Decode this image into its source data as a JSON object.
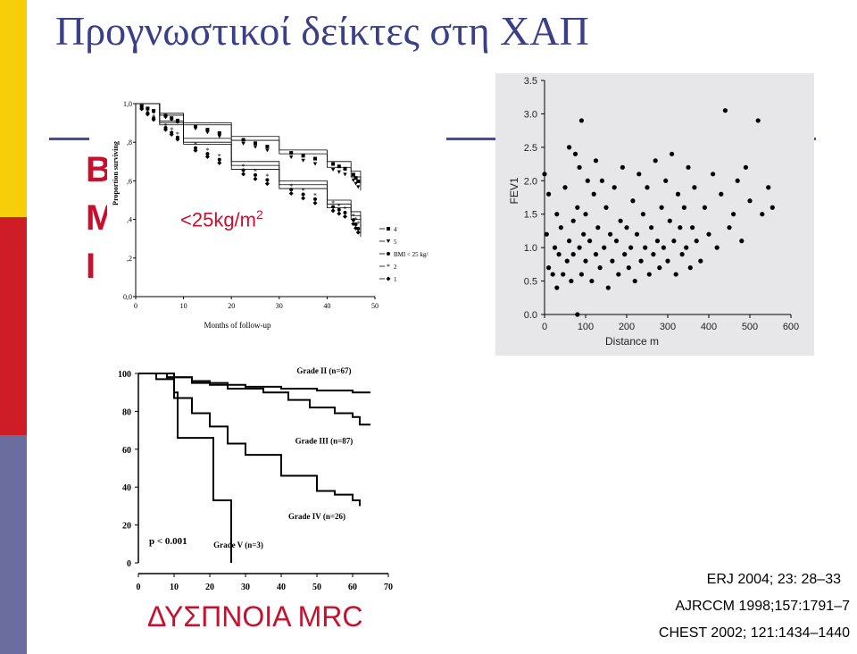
{
  "slide": {
    "title": "Προγνωστικοί δείκτες στη ΧΑΠ",
    "bmi_letters": [
      "B",
      "M",
      "I"
    ],
    "bmi_threshold": "<25kg/m",
    "bmi_threshold_sup": "2",
    "dyspnea_label": "ΔΥΣΠΝΟΙΑ MRC",
    "refs": [
      "ERJ 2004; 23: 28–33",
      "AJRCCM 1998;157:1791–7",
      "CHEST 2002; 121:1434–1440"
    ],
    "colors": {
      "title": "#3b3f88",
      "accent_red": "#c8102e",
      "bar_yellow": "#f6cf0a",
      "bar_red": "#cf1d27",
      "bar_navy": "#6b6d9e"
    }
  },
  "chart_data": [
    {
      "type": "line",
      "id": "bmi-survival",
      "ylabel": "Proportion surviving",
      "xlabel": "Months of follow-up",
      "xlim": [
        0,
        50
      ],
      "ylim": [
        0.0,
        1.0
      ],
      "x_ticks": [
        0,
        10,
        20,
        30,
        40,
        50
      ],
      "x_tick_labels": [
        "0",
        "10",
        "20",
        "30",
        "40",
        "50"
      ],
      "y_ticks": [
        0.0,
        0.2,
        0.4,
        0.6,
        0.8,
        1.0
      ],
      "y_tick_labels": [
        "0,0",
        ",2",
        ",4",
        ",6",
        ",8",
        "1,0"
      ],
      "legend": [
        "4",
        "5",
        "BMI < 25 kg/m2",
        "2",
        "1"
      ],
      "series": [
        {
          "name": "4",
          "x": [
            0,
            5,
            10,
            20,
            30,
            40,
            45,
            47
          ],
          "values": [
            1.0,
            0.95,
            0.9,
            0.83,
            0.76,
            0.7,
            0.65,
            0.58
          ]
        },
        {
          "name": "5",
          "x": [
            0,
            5,
            10,
            20,
            30,
            40,
            45,
            47
          ],
          "values": [
            1.0,
            0.94,
            0.89,
            0.81,
            0.74,
            0.67,
            0.62,
            0.55
          ]
        },
        {
          "name": "BMI < 25 kg/m2",
          "x": [
            0,
            5,
            10,
            20,
            30,
            40,
            45,
            47
          ],
          "values": [
            1.0,
            0.9,
            0.8,
            0.68,
            0.58,
            0.48,
            0.42,
            0.33
          ]
        },
        {
          "name": "2",
          "x": [
            0,
            5,
            10,
            20,
            30,
            40,
            45,
            47
          ],
          "values": [
            1.0,
            0.91,
            0.82,
            0.7,
            0.6,
            0.5,
            0.44,
            0.36
          ]
        },
        {
          "name": "1",
          "x": [
            0,
            5,
            10,
            20,
            30,
            40,
            45,
            47
          ],
          "values": [
            1.0,
            0.89,
            0.79,
            0.66,
            0.56,
            0.46,
            0.4,
            0.31
          ]
        }
      ]
    },
    {
      "type": "scatter",
      "id": "fev1-distance",
      "xlabel": "Distance m",
      "ylabel": "FEV1",
      "xlim": [
        0,
        600
      ],
      "ylim": [
        0,
        3.5
      ],
      "x_ticks": [
        0,
        100,
        200,
        300,
        400,
        500,
        600
      ],
      "x_tick_labels": [
        "0",
        "100",
        "200",
        "300",
        "400",
        "500",
        "600"
      ],
      "y_ticks": [
        0,
        0.5,
        1.0,
        1.5,
        2.0,
        2.5,
        3.0,
        3.5
      ],
      "y_tick_labels": [
        "0.0",
        "0.5",
        "1.0",
        "1.5",
        "2.0",
        "2.5",
        "3.0",
        "3.5"
      ],
      "points": [
        [
          0,
          2.1
        ],
        [
          5,
          1.2
        ],
        [
          10,
          1.8
        ],
        [
          10,
          0.7
        ],
        [
          20,
          0.6
        ],
        [
          25,
          1.0
        ],
        [
          30,
          1.5
        ],
        [
          30,
          0.4
        ],
        [
          35,
          0.9
        ],
        [
          40,
          1.3
        ],
        [
          45,
          0.6
        ],
        [
          50,
          1.9
        ],
        [
          55,
          0.8
        ],
        [
          60,
          2.5
        ],
        [
          60,
          1.1
        ],
        [
          65,
          0.5
        ],
        [
          70,
          1.4
        ],
        [
          70,
          0.9
        ],
        [
          75,
          2.4
        ],
        [
          80,
          0.0
        ],
        [
          80,
          1.6
        ],
        [
          85,
          2.2
        ],
        [
          85,
          1.0
        ],
        [
          90,
          2.9
        ],
        [
          90,
          0.6
        ],
        [
          95,
          1.2
        ],
        [
          100,
          0.8
        ],
        [
          100,
          1.5
        ],
        [
          105,
          2.0
        ],
        [
          110,
          1.1
        ],
        [
          115,
          0.5
        ],
        [
          120,
          1.8
        ],
        [
          125,
          2.3
        ],
        [
          125,
          0.9
        ],
        [
          130,
          1.3
        ],
        [
          135,
          0.7
        ],
        [
          140,
          2.0
        ],
        [
          145,
          1.0
        ],
        [
          150,
          1.6
        ],
        [
          155,
          0.4
        ],
        [
          160,
          1.2
        ],
        [
          165,
          0.8
        ],
        [
          170,
          1.9
        ],
        [
          175,
          1.1
        ],
        [
          180,
          0.6
        ],
        [
          185,
          1.4
        ],
        [
          190,
          2.2
        ],
        [
          195,
          0.9
        ],
        [
          200,
          1.3
        ],
        [
          205,
          0.7
        ],
        [
          210,
          1.0
        ],
        [
          215,
          1.7
        ],
        [
          220,
          0.5
        ],
        [
          225,
          1.2
        ],
        [
          230,
          2.1
        ],
        [
          235,
          0.8
        ],
        [
          240,
          1.5
        ],
        [
          245,
          1.0
        ],
        [
          250,
          1.9
        ],
        [
          255,
          0.6
        ],
        [
          260,
          1.3
        ],
        [
          265,
          0.9
        ],
        [
          270,
          2.3
        ],
        [
          275,
          1.1
        ],
        [
          280,
          0.7
        ],
        [
          285,
          1.6
        ],
        [
          290,
          1.0
        ],
        [
          295,
          2.0
        ],
        [
          300,
          0.8
        ],
        [
          305,
          1.4
        ],
        [
          310,
          2.4
        ],
        [
          315,
          1.1
        ],
        [
          320,
          0.6
        ],
        [
          325,
          1.8
        ],
        [
          330,
          1.3
        ],
        [
          335,
          0.9
        ],
        [
          340,
          1.6
        ],
        [
          345,
          1.0
        ],
        [
          350,
          2.2
        ],
        [
          355,
          0.7
        ],
        [
          360,
          1.3
        ],
        [
          365,
          1.9
        ],
        [
          370,
          1.1
        ],
        [
          380,
          0.8
        ],
        [
          390,
          1.6
        ],
        [
          400,
          1.2
        ],
        [
          410,
          2.1
        ],
        [
          420,
          1.0
        ],
        [
          430,
          1.8
        ],
        [
          440,
          3.05
        ],
        [
          450,
          1.3
        ],
        [
          460,
          1.5
        ],
        [
          470,
          2.0
        ],
        [
          480,
          1.1
        ],
        [
          490,
          2.2
        ],
        [
          500,
          1.7
        ],
        [
          520,
          2.9
        ],
        [
          530,
          1.5
        ],
        [
          545,
          1.9
        ],
        [
          555,
          1.6
        ]
      ]
    },
    {
      "type": "line",
      "id": "mrc-survival",
      "xlim": [
        0,
        70
      ],
      "ylim": [
        0,
        100
      ],
      "x_ticks": [
        0,
        10,
        20,
        30,
        40,
        50,
        60,
        70
      ],
      "x_tick_labels": [
        "0",
        "10",
        "20",
        "30",
        "40",
        "50",
        "60",
        "70"
      ],
      "y_ticks": [
        0,
        20,
        40,
        60,
        80,
        100
      ],
      "y_tick_labels": [
        "0",
        "20",
        "40",
        "60",
        "80",
        "100"
      ],
      "annotations": [
        "p < 0.001"
      ],
      "series": [
        {
          "name": "Grade II (n=67)",
          "x": [
            0,
            8,
            15,
            20,
            30,
            40,
            50,
            60,
            65
          ],
          "values": [
            100,
            98,
            96,
            94,
            93,
            92,
            91,
            90,
            90
          ]
        },
        {
          "name": "Grade III (n=87)",
          "x": [
            0,
            8,
            15,
            25,
            35,
            42,
            48,
            55,
            60,
            62,
            65
          ],
          "values": [
            100,
            98,
            95,
            92,
            90,
            86,
            82,
            79,
            77,
            73,
            73
          ]
        },
        {
          "name": "Grade IV (n=26)",
          "x": [
            0,
            5,
            10,
            15,
            20,
            25,
            30,
            40,
            50,
            55,
            60,
            62
          ],
          "values": [
            100,
            97,
            87,
            79,
            72,
            63,
            57,
            46,
            38,
            36,
            33,
            30
          ]
        },
        {
          "name": "Grade V (n=3)",
          "x": [
            0,
            10,
            11,
            20,
            21,
            25,
            26
          ],
          "values": [
            100,
            90,
            66,
            66,
            33,
            33,
            0
          ]
        }
      ]
    }
  ]
}
